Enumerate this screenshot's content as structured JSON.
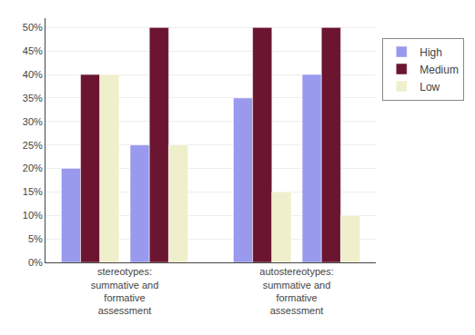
{
  "chart_data": {
    "type": "bar",
    "categories": [
      "stereotypes:\nsummative and\nformative\nassessment",
      null,
      "autostereotypes:\nsummative and\nformative\nassessment",
      null
    ],
    "series": [
      {
        "name": "High",
        "color": "#9999EE",
        "values": [
          20,
          25,
          35,
          40
        ]
      },
      {
        "name": "Medium",
        "color": "#6B1530",
        "values": [
          40,
          50,
          50,
          50
        ]
      },
      {
        "name": "Low",
        "color": "#EFEFCC",
        "values": [
          40,
          25,
          15,
          10
        ]
      }
    ],
    "ylim": [
      0,
      52
    ],
    "yticks": [
      {
        "value": 0,
        "label": "0%"
      },
      {
        "value": 5,
        "label": "5%"
      },
      {
        "value": 10,
        "label": "10%"
      },
      {
        "value": 15,
        "label": "15%"
      },
      {
        "value": 20,
        "label": "20%"
      },
      {
        "value": 25,
        "label": "25%"
      },
      {
        "value": 30,
        "label": "30%"
      },
      {
        "value": 35,
        "label": "35%"
      },
      {
        "value": 40,
        "label": "40%"
      },
      {
        "value": 45,
        "label": "45%"
      },
      {
        "value": 50,
        "label": "50%"
      }
    ],
    "grid": true,
    "legend": "right"
  }
}
